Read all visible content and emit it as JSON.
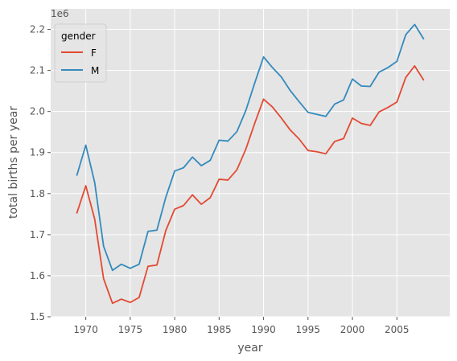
{
  "chart_data": {
    "type": "line",
    "title": "",
    "xlabel": "year",
    "ylabel": "total births per year",
    "y_offset_label": "1e6",
    "xlim": [
      1966.05,
      2010.95
    ],
    "ylim": [
      1.5,
      2.25
    ],
    "x_ticks": [
      1970,
      1975,
      1980,
      1985,
      1990,
      1995,
      2000,
      2005
    ],
    "y_ticks": [
      1.5,
      1.6,
      1.7,
      1.8,
      1.9,
      2.0,
      2.1,
      2.2
    ],
    "grid": true,
    "legend": {
      "title": "gender",
      "position": "top-left"
    },
    "x": [
      1969,
      1970,
      1971,
      1972,
      1973,
      1974,
      1975,
      1976,
      1977,
      1978,
      1979,
      1980,
      1981,
      1982,
      1983,
      1984,
      1985,
      1986,
      1987,
      1988,
      1989,
      1990,
      1991,
      1992,
      1993,
      1994,
      1995,
      1996,
      1997,
      1998,
      1999,
      2000,
      2001,
      2002,
      2003,
      2004,
      2005,
      2006,
      2007,
      2008
    ],
    "series": [
      {
        "name": "F",
        "color": "#E24A33",
        "values": [
          1.753,
          1.819,
          1.738,
          1.593,
          1.533,
          1.543,
          1.535,
          1.547,
          1.623,
          1.626,
          1.71,
          1.762,
          1.771,
          1.797,
          1.774,
          1.79,
          1.835,
          1.833,
          1.858,
          1.908,
          1.971,
          2.03,
          2.011,
          1.984,
          1.955,
          1.933,
          1.905,
          1.902,
          1.897,
          1.927,
          1.934,
          1.984,
          1.971,
          1.966,
          1.999,
          2.01,
          2.023,
          2.083,
          2.111,
          2.077
        ]
      },
      {
        "name": "M",
        "color": "#348ABD",
        "values": [
          1.845,
          1.918,
          1.827,
          1.672,
          1.613,
          1.628,
          1.618,
          1.628,
          1.708,
          1.711,
          1.791,
          1.855,
          1.863,
          1.889,
          1.868,
          1.881,
          1.93,
          1.928,
          1.951,
          2.002,
          2.069,
          2.133,
          2.107,
          2.084,
          2.051,
          2.024,
          1.998,
          1.993,
          1.988,
          2.018,
          2.028,
          2.079,
          2.062,
          2.061,
          2.096,
          2.107,
          2.122,
          2.187,
          2.212,
          2.177
        ]
      }
    ]
  },
  "style": {
    "axes_bg": "#E5E5E5",
    "grid_color": "#FFFFFF",
    "text_color": "#555555",
    "label_color": "#555555",
    "legend_bg": "#E5E5E5",
    "legend_border": "#CCCCCC"
  }
}
